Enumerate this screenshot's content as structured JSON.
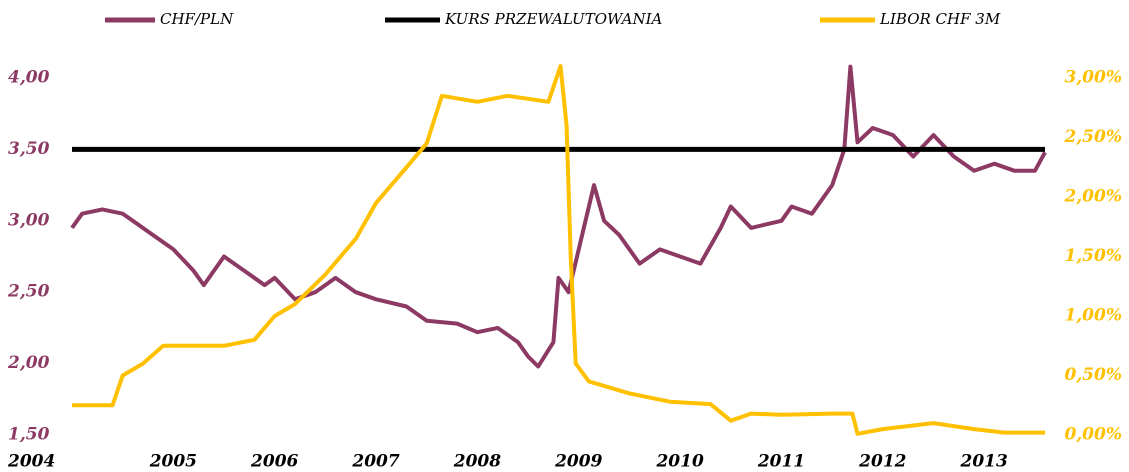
{
  "chart_data": {
    "type": "line",
    "series": [
      {
        "name": "CHF/PLN",
        "color": "#8c3a64",
        "axis": "y",
        "x": [
          2004.0,
          2004.1,
          2004.3,
          2004.5,
          2004.8,
          2005.0,
          2005.2,
          2005.3,
          2005.5,
          2005.7,
          2005.9,
          2006.0,
          2006.2,
          2006.4,
          2006.6,
          2006.8,
          2007.0,
          2007.3,
          2007.5,
          2007.8,
          2008.0,
          2008.2,
          2008.4,
          2008.5,
          2008.6,
          2008.75,
          2008.8,
          2008.9,
          2009.05,
          2009.15,
          2009.25,
          2009.4,
          2009.6,
          2009.8,
          2010.0,
          2010.2,
          2010.4,
          2010.5,
          2010.7,
          2011.0,
          2011.1,
          2011.3,
          2011.5,
          2011.62,
          2011.68,
          2011.75,
          2011.9,
          2012.1,
          2012.3,
          2012.5,
          2012.7,
          2012.9,
          2013.1,
          2013.3,
          2013.5,
          2013.6
        ],
        "values": [
          2.95,
          3.05,
          3.08,
          3.05,
          2.9,
          2.8,
          2.65,
          2.55,
          2.75,
          2.65,
          2.55,
          2.6,
          2.45,
          2.5,
          2.6,
          2.5,
          2.45,
          2.4,
          2.3,
          2.28,
          2.22,
          2.25,
          2.15,
          2.05,
          1.98,
          2.15,
          2.6,
          2.5,
          2.95,
          3.25,
          3.0,
          2.9,
          2.7,
          2.8,
          2.75,
          2.7,
          2.95,
          3.1,
          2.95,
          3.0,
          3.1,
          3.05,
          3.25,
          3.5,
          4.08,
          3.55,
          3.65,
          3.6,
          3.45,
          3.6,
          3.45,
          3.35,
          3.4,
          3.35,
          3.35,
          3.48
        ]
      },
      {
        "name": "KURS PRZEWALUTOWANIA",
        "color": "#000000",
        "axis": "y",
        "x": [
          2004.0,
          2013.6
        ],
        "values": [
          3.5,
          3.5
        ]
      },
      {
        "name": "LIBOR CHF 3M",
        "color": "#ffc000",
        "axis": "y2",
        "x": [
          2004.0,
          2004.4,
          2004.5,
          2004.7,
          2004.9,
          2005.5,
          2005.8,
          2006.0,
          2006.2,
          2006.5,
          2006.8,
          2007.0,
          2007.3,
          2007.5,
          2007.65,
          2008.0,
          2008.3,
          2008.7,
          2008.82,
          2008.88,
          2008.92,
          2008.97,
          2009.1,
          2009.5,
          2009.9,
          2010.3,
          2010.5,
          2010.7,
          2011.0,
          2011.5,
          2011.7,
          2011.75,
          2012.0,
          2012.5,
          2012.9,
          2013.2,
          2013.6
        ],
        "values": [
          0.25,
          0.25,
          0.5,
          0.6,
          0.75,
          0.75,
          0.8,
          1.0,
          1.1,
          1.35,
          1.65,
          1.95,
          2.25,
          2.45,
          2.85,
          2.8,
          2.85,
          2.8,
          3.1,
          2.6,
          1.5,
          0.6,
          0.45,
          0.35,
          0.28,
          0.26,
          0.12,
          0.18,
          0.17,
          0.18,
          0.18,
          0.01,
          0.05,
          0.1,
          0.05,
          0.02,
          0.02
        ]
      }
    ],
    "xlim": [
      2004,
      2013.6
    ],
    "xticks": [
      2004,
      2005,
      2006,
      2007,
      2008,
      2009,
      2010,
      2011,
      2012,
      2013
    ],
    "ylim": [
      1.5,
      4.0
    ],
    "yticks": [
      {
        "value": 1.5,
        "label": "1,50"
      },
      {
        "value": 2.0,
        "label": "2,00"
      },
      {
        "value": 2.5,
        "label": "2,50"
      },
      {
        "value": 3.0,
        "label": "3,00"
      },
      {
        "value": 3.5,
        "label": "3,50"
      },
      {
        "value": 4.0,
        "label": "4,00"
      }
    ],
    "y2lim": [
      0,
      3
    ],
    "y2ticks": [
      {
        "value": 0,
        "label": "0,00%"
      },
      {
        "value": 0.5,
        "label": "0,50%"
      },
      {
        "value": 1.0,
        "label": "1,00%"
      },
      {
        "value": 1.5,
        "label": "1,50%"
      },
      {
        "value": 2.0,
        "label": "2,00%"
      },
      {
        "value": 2.5,
        "label": "2,50%"
      },
      {
        "value": 3.0,
        "label": "3,00%"
      }
    ],
    "legend": "top",
    "grid": false
  }
}
